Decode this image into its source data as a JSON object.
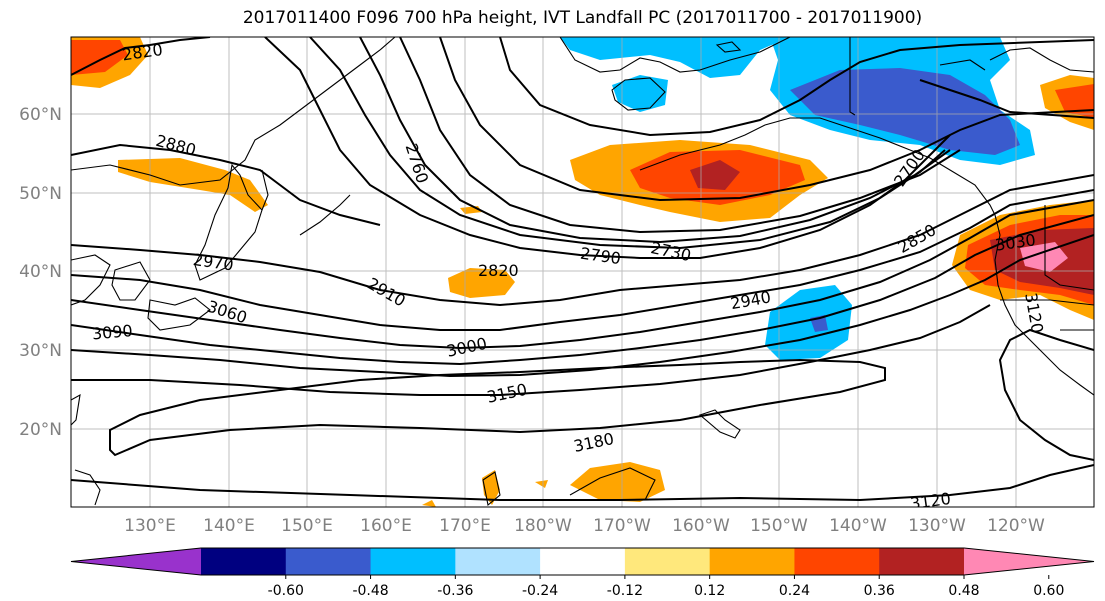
{
  "title": "2017011400 F096 700 hPa height, IVT Landfall PC (2017011700 - 2017011900)",
  "lat_labels": [
    "60°N",
    "50°N",
    "40°N",
    "30°N",
    "20°N"
  ],
  "lon_labels": [
    "130°E",
    "140°E",
    "150°E",
    "160°E",
    "170°E",
    "180°W",
    "170°W",
    "160°W",
    "150°W",
    "140°W",
    "130°W",
    "120°W"
  ],
  "contour_labels": [
    "2820",
    "2880",
    "2760",
    "2700",
    "2850",
    "3030",
    "3120",
    "2970",
    "3060",
    "3090",
    "2910",
    "2820",
    "2790",
    "2730",
    "2940",
    "3000",
    "3150",
    "3180",
    "3120"
  ],
  "colorbar": {
    "colors": [
      "#9932cc",
      "#000080",
      "#3a5bcd",
      "#00bfff",
      "#b0e2ff",
      "#ffffff",
      "#ffe87c",
      "#ffa500",
      "#ff4500",
      "#b22222",
      "#ff88b4"
    ],
    "tick_labels": [
      "-0.60",
      "-0.48",
      "-0.36",
      "-0.24",
      "-0.12",
      "0.12",
      "0.24",
      "0.36",
      "0.48",
      "0.60"
    ]
  },
  "legend": {
    "shading": "IVT Landfall PC",
    "contours": "700 hPa height"
  }
}
